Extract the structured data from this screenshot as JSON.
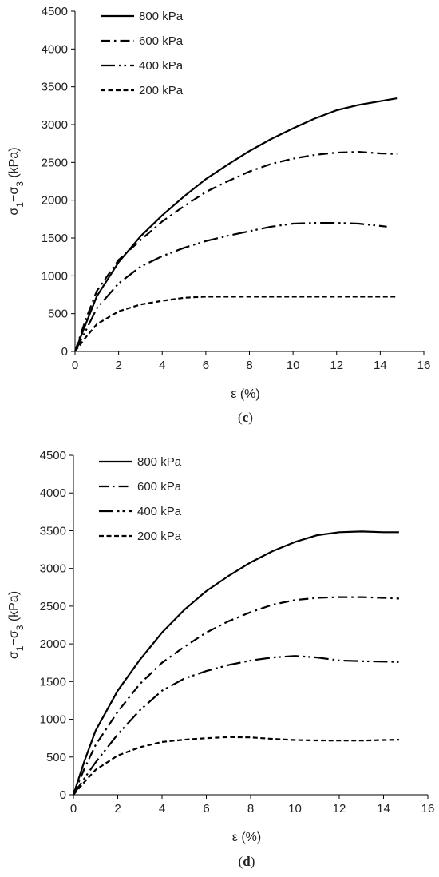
{
  "chart_data": [
    {
      "type": "line",
      "panel_label": "(c)",
      "xlabel": "ε (%)",
      "ylabel": "σ1−σ3 (kPa)",
      "xlim": [
        0,
        16
      ],
      "ylim": [
        0,
        4500
      ],
      "xticks": [
        0,
        2,
        4,
        6,
        8,
        10,
        12,
        14,
        16
      ],
      "yticks": [
        0,
        500,
        1000,
        1500,
        2000,
        2500,
        3000,
        3500,
        4000,
        4500
      ],
      "grid": false,
      "legend_position": "top-left",
      "series": [
        {
          "name": "800 kPa",
          "line_style": "solid",
          "x": [
            0,
            0.5,
            1,
            2,
            3,
            4,
            5,
            6,
            7,
            8,
            9,
            10,
            11,
            12,
            13,
            14,
            14.8
          ],
          "y": [
            0,
            370,
            730,
            1180,
            1520,
            1800,
            2050,
            2280,
            2470,
            2650,
            2810,
            2950,
            3080,
            3190,
            3260,
            3310,
            3350
          ]
        },
        {
          "name": "600 kPa",
          "line_style": "dash-dot",
          "x": [
            0,
            0.5,
            1,
            2,
            3,
            4,
            5,
            6,
            7,
            8,
            9,
            10,
            11,
            12,
            13,
            14,
            14.8
          ],
          "y": [
            0,
            430,
            800,
            1210,
            1470,
            1720,
            1920,
            2110,
            2250,
            2380,
            2480,
            2550,
            2600,
            2630,
            2640,
            2620,
            2610
          ]
        },
        {
          "name": "400 kPa",
          "line_style": "long-dash-dot-dot",
          "x": [
            0,
            0.5,
            1,
            2,
            3,
            4,
            5,
            6,
            7,
            8,
            9,
            10,
            11,
            12,
            13,
            14,
            14.3
          ],
          "y": [
            0,
            280,
            570,
            900,
            1120,
            1260,
            1370,
            1460,
            1530,
            1590,
            1650,
            1690,
            1700,
            1700,
            1690,
            1660,
            1650
          ]
        },
        {
          "name": "200 kPa",
          "line_style": "dashed",
          "x": [
            0,
            0.5,
            1,
            2,
            3,
            4,
            5,
            6,
            8,
            10,
            12,
            14,
            14.8
          ],
          "y": [
            0,
            190,
            360,
            530,
            620,
            670,
            710,
            725,
            725,
            725,
            725,
            725,
            725
          ]
        }
      ]
    },
    {
      "type": "line",
      "panel_label": "(d)",
      "xlabel": "ε (%)",
      "ylabel": "σ1−σ3 (kPa)",
      "xlim": [
        0,
        16
      ],
      "ylim": [
        0,
        4500
      ],
      "xticks": [
        0,
        2,
        4,
        6,
        8,
        10,
        12,
        14,
        16
      ],
      "yticks": [
        0,
        500,
        1000,
        1500,
        2000,
        2500,
        3000,
        3500,
        4000,
        4500
      ],
      "grid": false,
      "legend_position": "top-left",
      "series": [
        {
          "name": "800 kPa",
          "line_style": "solid",
          "x": [
            0,
            0.5,
            1,
            2,
            3,
            4,
            5,
            6,
            7,
            8,
            9,
            10,
            11,
            12,
            13,
            14,
            14.7
          ],
          "y": [
            0,
            450,
            850,
            1380,
            1790,
            2150,
            2450,
            2700,
            2900,
            3080,
            3230,
            3350,
            3440,
            3480,
            3490,
            3480,
            3480
          ]
        },
        {
          "name": "600 kPa",
          "line_style": "dash-dot",
          "x": [
            0,
            0.5,
            1,
            2,
            3,
            4,
            5,
            6,
            7,
            8,
            9,
            10,
            11,
            12,
            13,
            14,
            14.7
          ],
          "y": [
            0,
            350,
            660,
            1100,
            1470,
            1750,
            1960,
            2150,
            2300,
            2420,
            2520,
            2580,
            2610,
            2620,
            2620,
            2610,
            2600
          ]
        },
        {
          "name": "400 kPa",
          "line_style": "long-dash-dot-dot",
          "x": [
            0,
            0.5,
            1,
            2,
            3,
            4,
            5,
            6,
            7,
            8,
            9,
            10,
            11,
            12,
            13,
            14,
            14.7
          ],
          "y": [
            0,
            220,
            430,
            800,
            1120,
            1380,
            1540,
            1640,
            1720,
            1780,
            1820,
            1840,
            1820,
            1780,
            1770,
            1765,
            1760
          ]
        },
        {
          "name": "200 kPa",
          "line_style": "dashed",
          "x": [
            0,
            0.5,
            1,
            2,
            3,
            4,
            5,
            6,
            7,
            8,
            9,
            10,
            11,
            12,
            13,
            14,
            14.7
          ],
          "y": [
            0,
            170,
            330,
            520,
            630,
            700,
            730,
            750,
            765,
            760,
            740,
            725,
            720,
            718,
            718,
            725,
            730
          ]
        }
      ]
    }
  ]
}
